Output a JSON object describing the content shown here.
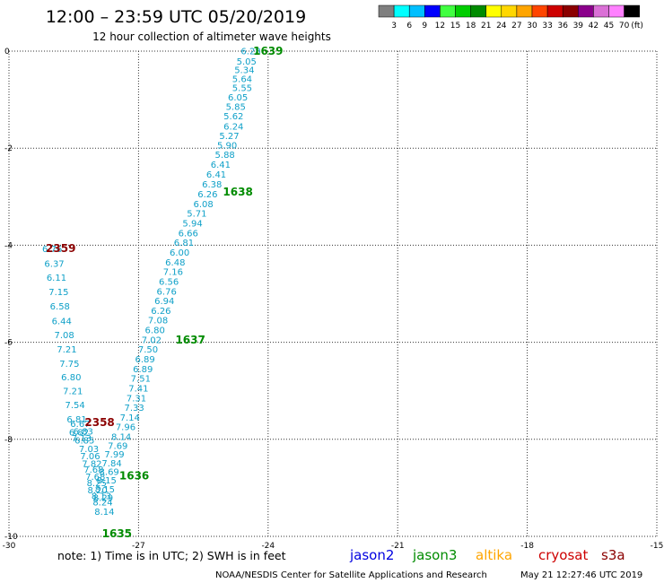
{
  "header": {
    "title": "12:00 – 23:59 UTC 05/20/2019",
    "subtitle": "12 hour collection of altimeter wave heights"
  },
  "colorbar": {
    "colors": [
      "#7f7f7f",
      "#00ffff",
      "#00bfff",
      "#0000ff",
      "#40ff40",
      "#00cd00",
      "#008b00",
      "#ffff00",
      "#ffd700",
      "#ffa500",
      "#ff4500",
      "#cd0000",
      "#8b0000",
      "#8b008b",
      "#da70d6",
      "#ff80ff",
      "#000000"
    ],
    "labels": [
      "3",
      "6",
      "9",
      "12",
      "15",
      "18",
      "21",
      "24",
      "27",
      "30",
      "33",
      "36",
      "39",
      "42",
      "45",
      "70",
      "(ft)"
    ]
  },
  "footer": {
    "note": "note: 1) Time is in UTC; 2) SWH is in feet",
    "credit": "NOAA/NESDIS Center for Satellite Applications and Research",
    "timestamp": "May 21 12:27:46 UTC 2019",
    "legend": [
      {
        "name": "jason2",
        "color": "#0000e0"
      },
      {
        "name": "jason3",
        "color": "#008b00"
      },
      {
        "name": "altika",
        "color": "#ffa500"
      },
      {
        "name": "cryosat",
        "color": "#cd0000"
      },
      {
        "name": "s3a",
        "color": "#8b0000"
      }
    ]
  },
  "chart_data": {
    "type": "scatter",
    "xlim": [
      -30,
      -15
    ],
    "ylim": [
      -10,
      0
    ],
    "x_ticks": [
      "-30",
      "-27",
      "-24",
      "-21",
      "-18",
      "-15"
    ],
    "y_ticks": [
      "0",
      "-2",
      "-4",
      "-6",
      "-8",
      "-10"
    ],
    "grid": true,
    "value_color": "#0fa0c8",
    "track_a": {
      "lon": [
        -28.28,
        -28.25,
        -28.15,
        -28.12,
        -28.08,
        -28.04,
        -28.0,
        -27.97,
        -27.95,
        -27.86,
        -27.83,
        -27.79
      ],
      "lat": [
        -7.83,
        -8.01,
        -8.19,
        -8.34,
        -8.49,
        -8.61,
        -8.76,
        -8.89,
        -9.04,
        -9.16,
        -9.29,
        -9.48
      ],
      "values": [
        "6.83",
        "6.85",
        "7.03",
        "7.06",
        "7.82",
        "7.68",
        "7.68",
        "8.25",
        "8.20",
        "8.13",
        "8.24",
        "8.14"
      ]
    },
    "track_b": {
      "lon": [
        -24.4,
        -24.5,
        -24.55,
        -24.6,
        -24.6,
        -24.7,
        -24.75,
        -24.8,
        -24.8,
        -24.9,
        -24.95,
        -25.0,
        -25.1,
        -25.2,
        -25.3,
        -25.4,
        -25.5,
        -25.65,
        -25.75,
        -25.85,
        -25.95,
        -26.05,
        -26.15,
        -26.2,
        -26.3,
        -26.35,
        -26.4,
        -26.48,
        -26.55,
        -26.62,
        -26.7,
        -26.78,
        -26.85,
        -26.9,
        -26.95,
        -27.0,
        -27.05,
        -27.1,
        -27.2,
        -27.3,
        -27.4,
        -27.48,
        -27.56,
        -27.62,
        -27.68,
        -27.74,
        -27.78,
        -27.82
      ],
      "lat": [
        0.01,
        -0.2,
        -0.38,
        -0.56,
        -0.75,
        -0.94,
        -1.14,
        -1.33,
        -1.54,
        -1.74,
        -1.93,
        -2.13,
        -2.33,
        -2.53,
        -2.74,
        -2.94,
        -3.14,
        -3.34,
        -3.54,
        -3.74,
        -3.94,
        -4.14,
        -4.34,
        -4.54,
        -4.74,
        -4.94,
        -5.14,
        -5.34,
        -5.54,
        -5.74,
        -5.94,
        -6.14,
        -6.34,
        -6.54,
        -6.74,
        -6.94,
        -7.14,
        -7.34,
        -7.54,
        -7.74,
        -7.94,
        -8.12,
        -8.3,
        -8.48,
        -8.66,
        -8.84,
        -9.02,
        -9.2
      ],
      "values": [
        "6.28",
        "5.05",
        "5.34",
        "5.64",
        "5.55",
        "6.05",
        "5.85",
        "5.62",
        "6.24",
        "5.27",
        "5.90",
        "5.88",
        "6.41",
        "6.41",
        "6.38",
        "6.26",
        "6.08",
        "5.71",
        "5.94",
        "6.66",
        "6.81",
        "6.00",
        "6.48",
        "7.16",
        "6.56",
        "6.76",
        "6.94",
        "6.26",
        "7.08",
        "6.80",
        "7.02",
        "7.50",
        "6.89",
        "6.89",
        "7.51",
        "7.41",
        "7.31",
        "7.33",
        "7.14",
        "7.96",
        "8.14",
        "7.69",
        "7.99",
        "7.84",
        "8.69",
        "8.15",
        "8.15",
        "8.29"
      ]
    },
    "track_c": {
      "lon": [
        -29.0,
        -28.95,
        -28.9,
        -28.85,
        -28.82,
        -28.78,
        -28.72,
        -28.66,
        -28.6,
        -28.56,
        -28.52,
        -28.47,
        -28.43,
        -28.38,
        -28.32
      ],
      "lat": [
        -4.07,
        -4.37,
        -4.66,
        -4.95,
        -5.25,
        -5.55,
        -5.84,
        -6.14,
        -6.43,
        -6.71,
        -7.0,
        -7.28,
        -7.58,
        -7.85,
        -7.97
      ],
      "values": [
        "6.76",
        "6.37",
        "6.11",
        "7.15",
        "6.58",
        "6.44",
        "7.08",
        "7.21",
        "7.75",
        "6.80",
        "7.21",
        "7.54",
        "6.81",
        "6.82",
        "7.13"
      ]
    },
    "track_d": {
      "lon": [
        -28.35
      ],
      "lat": [
        -7.67
      ],
      "values": [
        "6.67"
      ]
    },
    "times": [
      {
        "label": "1639",
        "lon": -24.0,
        "lat": 0.0,
        "color": "#008b00"
      },
      {
        "label": "1638",
        "lon": -24.7,
        "lat": -2.9,
        "color": "#008b00"
      },
      {
        "label": "1637",
        "lon": -25.8,
        "lat": -5.95,
        "color": "#008b00"
      },
      {
        "label": "1636",
        "lon": -27.1,
        "lat": -8.75,
        "color": "#008b00"
      },
      {
        "label": "1635",
        "lon": -27.5,
        "lat": -9.94,
        "color": "#008b00"
      },
      {
        "label": "2359",
        "lon": -28.8,
        "lat": -4.07,
        "color": "#8b0000"
      },
      {
        "label": "2358",
        "lon": -27.9,
        "lat": -7.65,
        "color": "#8b0000"
      }
    ]
  }
}
